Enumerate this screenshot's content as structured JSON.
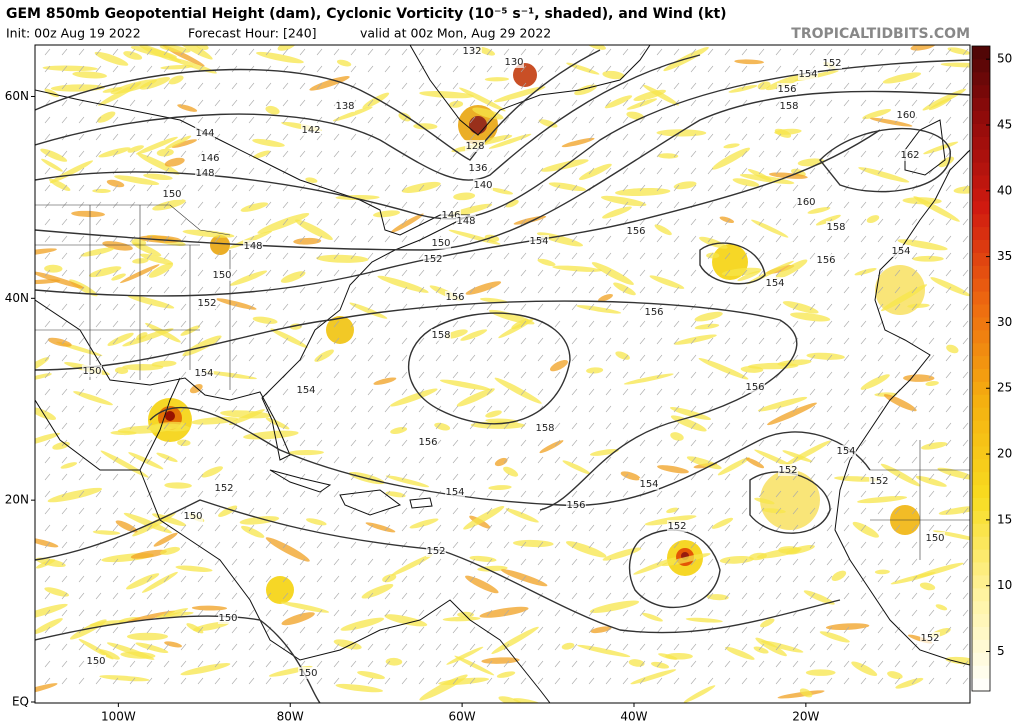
{
  "header": {
    "title": "GEM 850mb Geopotential Height (dam), Cyclonic Vorticity (10⁻⁵ s⁻¹, shaded), and Wind (kt)",
    "init": "Init: 00z Aug 19 2022",
    "forecast_hour": "Forecast Hour: [240]",
    "valid": "valid at 00z Mon, Aug 29 2022",
    "watermark": "TROPICALTIDBITS.COM"
  },
  "map": {
    "lon_range": [
      -109.7,
      -0.9
    ],
    "lat_range": [
      -0.1,
      65.1
    ],
    "lat_ticks": [
      {
        "value": 60,
        "label": "60N"
      },
      {
        "value": 40,
        "label": "40N"
      },
      {
        "value": 20,
        "label": "20N"
      },
      {
        "value": 0,
        "label": "EQ"
      }
    ],
    "lon_ticks": [
      {
        "value": -100,
        "label": "100W"
      },
      {
        "value": -80,
        "label": "80W"
      },
      {
        "value": -60,
        "label": "60W"
      },
      {
        "value": -40,
        "label": "40W"
      },
      {
        "value": -20,
        "label": "20W"
      }
    ],
    "contour_labels": [
      132,
      130,
      152,
      154,
      156,
      158,
      138,
      144,
      142,
      146,
      148,
      128,
      136,
      140,
      150,
      160,
      162,
      160,
      158,
      146,
      148,
      154,
      156,
      148,
      150,
      152,
      150,
      154,
      156,
      154,
      152,
      156,
      156,
      158,
      150,
      154,
      154,
      156,
      158,
      156,
      154,
      152,
      154,
      154,
      152,
      156,
      152,
      150,
      152,
      150,
      152,
      150,
      152,
      150,
      150
    ]
  },
  "colorbar": {
    "range": [
      2,
      51
    ],
    "ticks": [
      5,
      10,
      15,
      20,
      25,
      30,
      35,
      40,
      45,
      50
    ]
  }
}
